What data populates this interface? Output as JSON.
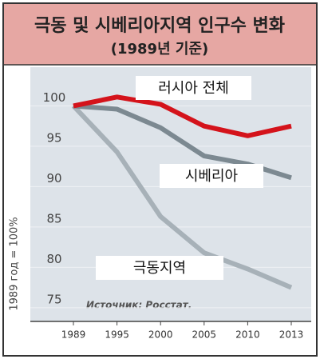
{
  "chart_data": {
    "type": "line",
    "title": "극동 및 시베리아지역 인구수 변화",
    "subtitle": "(1989년 기준)",
    "y_label": "1989 год = 100%",
    "source": "Источник: Росстат.",
    "categories": [
      "1989",
      "1995",
      "2000",
      "2005",
      "2010",
      "2013"
    ],
    "series": [
      {
        "name": "러시아 전체",
        "color": "#d4131b",
        "values": [
          100,
          101.1,
          100.2,
          97.5,
          96.3,
          97.5
        ]
      },
      {
        "name": "시베리아",
        "color": "#7c8991",
        "values": [
          100,
          99.6,
          97.3,
          93.8,
          92.8,
          91.1
        ]
      },
      {
        "name": "극동지역",
        "color": "#a7b1b8",
        "values": [
          100,
          94.3,
          86.3,
          81.8,
          79.8,
          77.5
        ]
      }
    ],
    "ylim": [
      73.3,
      104.8
    ],
    "yticks": [
      75,
      80,
      85,
      90,
      95,
      100
    ],
    "grid": true
  }
}
